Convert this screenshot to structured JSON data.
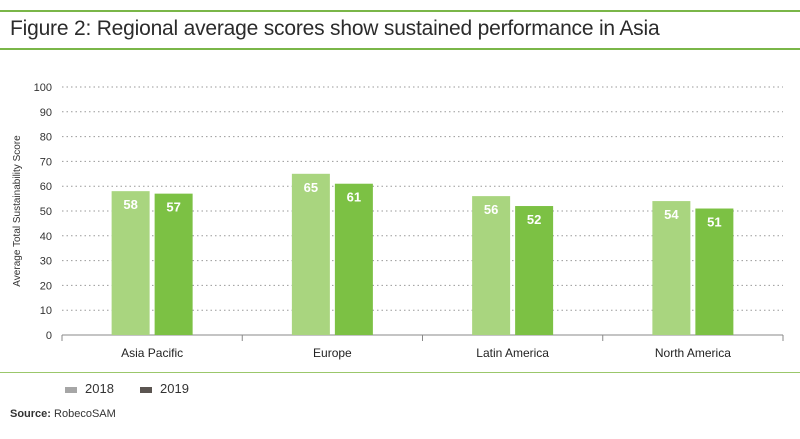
{
  "figure": {
    "title": "Figure 2: Regional average scores show sustained performance in Asia"
  },
  "legend": [
    {
      "label": "2018",
      "color": "#a6a6a6"
    },
    {
      "label": "2019",
      "color": "#5b5551"
    }
  ],
  "source": {
    "label": "Source:",
    "text": "RobecoSAM"
  },
  "colors": {
    "bar_2018": "#a9d57f",
    "bar_2019": "#7cc144",
    "accent": "#7ab648"
  },
  "chart_data": {
    "type": "bar",
    "title": "",
    "xlabel": "",
    "ylabel": "Average Total Sustainability Score",
    "ylim": [
      0,
      100
    ],
    "yticks": [
      0,
      10,
      20,
      30,
      40,
      50,
      60,
      70,
      80,
      90,
      100
    ],
    "grid": true,
    "legend_position": "bottom-left",
    "categories": [
      "Asia Pacific",
      "Europe",
      "Latin America",
      "North America"
    ],
    "series": [
      {
        "name": "2018",
        "values": [
          58,
          65,
          56,
          54
        ]
      },
      {
        "name": "2019",
        "values": [
          57,
          61,
          52,
          51
        ]
      }
    ]
  }
}
